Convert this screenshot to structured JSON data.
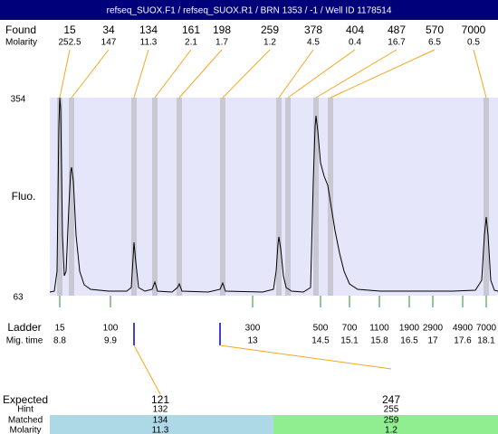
{
  "header": {
    "title": "refseq_SUOX.F1 / refseq_SUOX.R1 / BRN 1353 / -1 / Well ID 1178514"
  },
  "found": {
    "label": "Found",
    "molarity_label": "Molarity",
    "peaks": [
      {
        "size": 15,
        "molarity": 252.5
      },
      {
        "size": 34,
        "molarity": 147
      },
      {
        "size": 134,
        "molarity": 11.3
      },
      {
        "size": 161,
        "molarity": 2.1
      },
      {
        "size": 198,
        "molarity": 1.7
      },
      {
        "size": 259,
        "molarity": 1.2
      },
      {
        "size": 378,
        "molarity": 4.5
      },
      {
        "size": 404,
        "molarity": 0.4
      },
      {
        "size": 487,
        "molarity": 16.7
      },
      {
        "size": 570,
        "molarity": 6.5
      },
      {
        "size": 7000,
        "molarity": 0.5
      }
    ]
  },
  "plot": {
    "y_label": "Fluo.",
    "y_max": 354,
    "y_min": 63
  },
  "ladder": {
    "label": "Ladder",
    "mig_label": "Mig. time",
    "items": [
      {
        "size": 15,
        "time": 8.8
      },
      {
        "size": 100,
        "time": 9.9
      },
      {
        "size": 300,
        "time": 13
      },
      {
        "size": 500,
        "time": 14.5
      },
      {
        "size": 700,
        "time": 15.1
      },
      {
        "size": 1100,
        "time": 15.8
      },
      {
        "size": 1900,
        "time": 16.5
      },
      {
        "size": 2900,
        "time": 17
      },
      {
        "size": 4900,
        "time": 17.6
      },
      {
        "size": 7000,
        "time": 18.1
      }
    ]
  },
  "expected": {
    "label": "Expected",
    "hint_label": "Hint",
    "matched_label": "Matched",
    "molarity_label": "Molarity",
    "items": [
      {
        "expected": 121,
        "hint": 132,
        "matched": 134,
        "molarity": 11.3
      },
      {
        "expected": 247,
        "hint": 255,
        "matched": 259,
        "molarity": 1.2
      }
    ]
  }
}
